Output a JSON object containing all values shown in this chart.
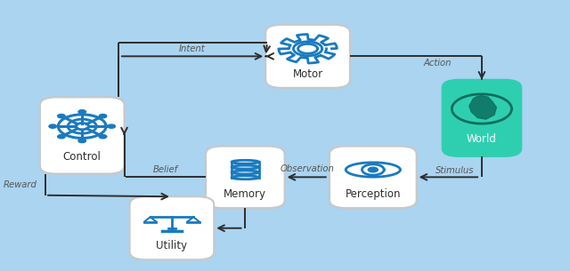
{
  "bg_color": "#aad4f0",
  "box_color": "#ffffff",
  "box_edge_color": "#c8c8c8",
  "world_color": "#2ecfb0",
  "world_edge_color": "#2ecfb0",
  "text_color": "#2d2d2d",
  "icon_color": "#1a7abf",
  "world_icon_color": "#0d6e5e",
  "arrow_color": "#2d2d2d",
  "label_color": "#555555",
  "nodes": {
    "Control": [
      0.105,
      0.5,
      0.155,
      0.285
    ],
    "Motor": [
      0.52,
      0.795,
      0.155,
      0.235
    ],
    "World": [
      0.84,
      0.565,
      0.145,
      0.285
    ],
    "Perception": [
      0.64,
      0.345,
      0.16,
      0.23
    ],
    "Memory": [
      0.405,
      0.345,
      0.145,
      0.23
    ],
    "Utility": [
      0.27,
      0.155,
      0.155,
      0.235
    ]
  }
}
